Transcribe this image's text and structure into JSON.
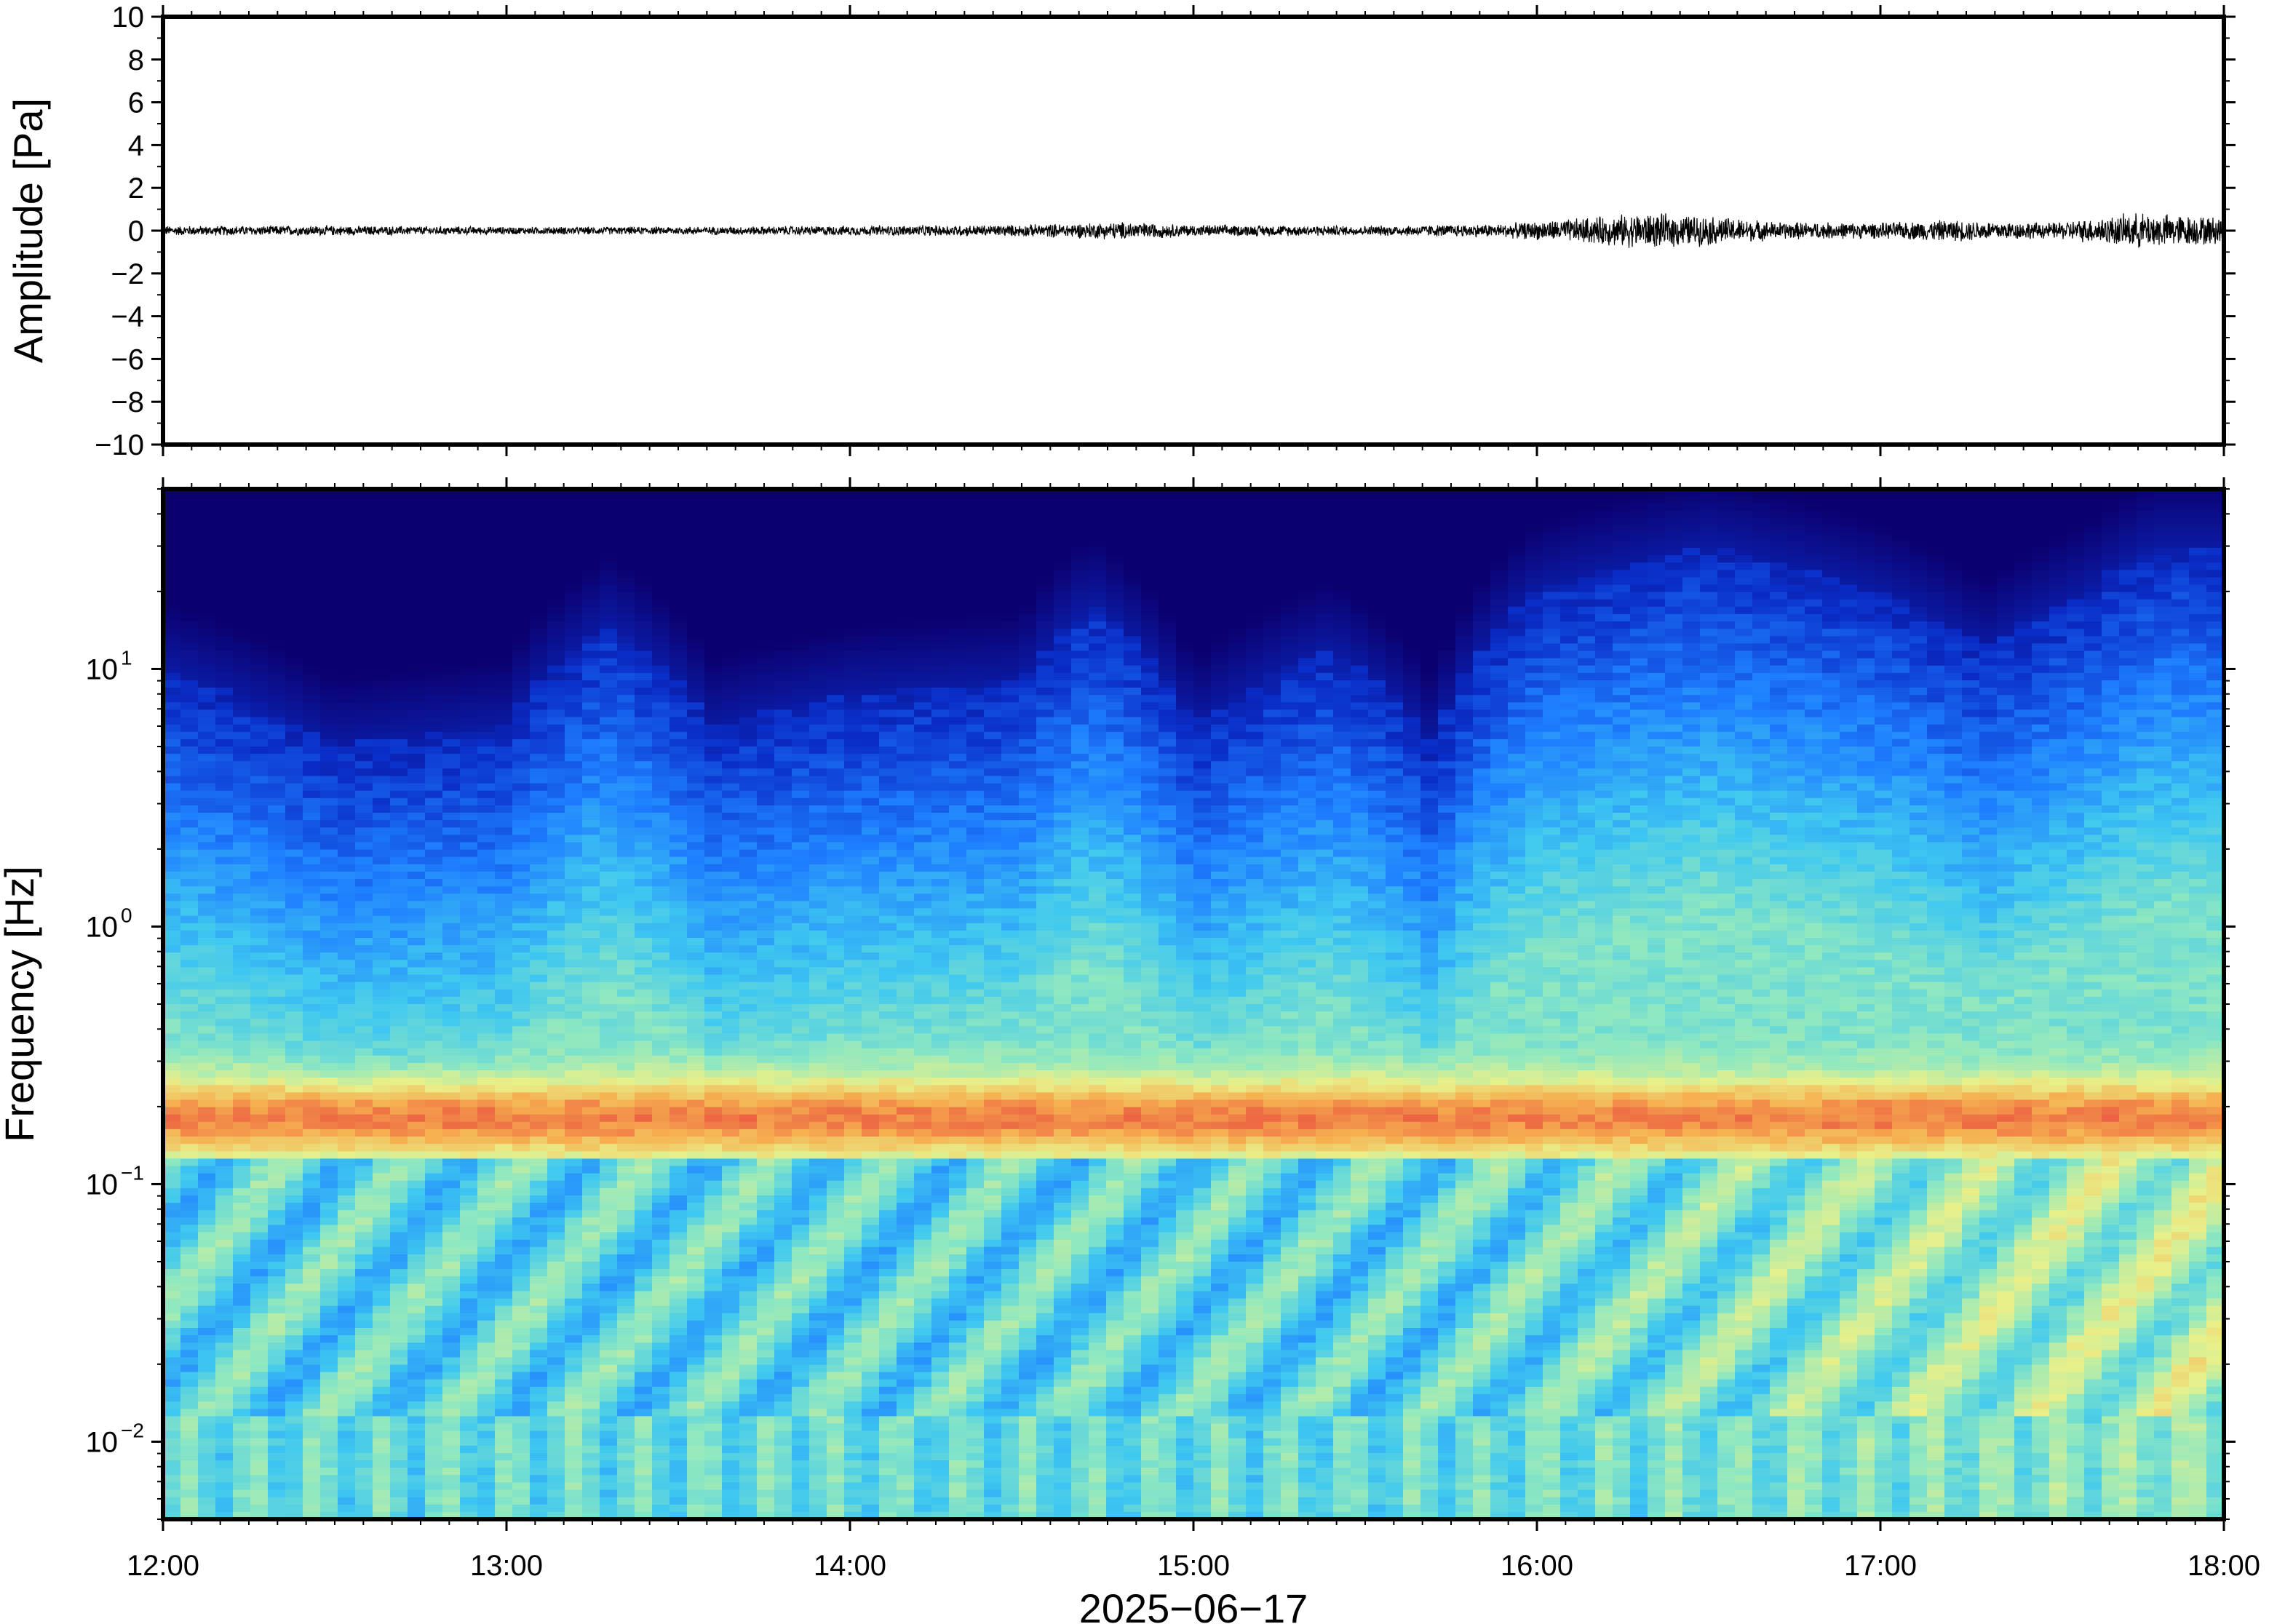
{
  "chart_data": [
    {
      "type": "line",
      "panel": "waveform",
      "ylabel": "Amplitude [Pa]",
      "ylim": [
        -10,
        10
      ],
      "yticks": [
        10,
        8,
        6,
        4,
        2,
        0,
        -2,
        -4,
        -6,
        -8,
        -10
      ],
      "ytick_labels": [
        "10",
        "8",
        "6",
        "4",
        "2",
        "0",
        "−2",
        "−4",
        "−6",
        "−8",
        "−10"
      ],
      "x_range_hours": [
        12,
        18
      ],
      "line_color": "#000000",
      "series": [
        {
          "x_hours": [
            12.0,
            12.5,
            13.0,
            13.5,
            14.0,
            14.5,
            14.8,
            15.0,
            15.5,
            15.9,
            16.1,
            16.3,
            16.5,
            16.7,
            17.0,
            17.2,
            17.5,
            17.75,
            18.0
          ],
          "envelope": [
            0.25,
            0.25,
            0.2,
            0.2,
            0.25,
            0.3,
            0.45,
            0.3,
            0.25,
            0.35,
            0.6,
            0.9,
            0.75,
            0.45,
            0.4,
            0.55,
            0.4,
            0.9,
            0.7
          ]
        }
      ]
    },
    {
      "type": "heatmap",
      "panel": "spectrogram",
      "ylabel": "Frequency [Hz]",
      "y_scale": "log",
      "ylim": [
        0.005,
        50
      ],
      "yticks": [
        0.01,
        0.1,
        1,
        10
      ],
      "ytick_labels": [
        {
          "base": "10",
          "exp": "−2"
        },
        {
          "base": "10",
          "exp": "−1"
        },
        {
          "base": "10",
          "exp": "0"
        },
        {
          "base": "10",
          "exp": "1"
        }
      ],
      "colormap": "jet",
      "colors": [
        "#0b006f",
        "#0a2ec8",
        "#1e7fff",
        "#3fc8f0",
        "#8fe8c0",
        "#e8f08a",
        "#f6b050",
        "#e8433c"
      ],
      "bands": {
        "microbarom_peak_hz": 0.18,
        "upper_cutoff_hz_by_hour": [
          [
            12.0,
            10
          ],
          [
            12.5,
            5
          ],
          [
            13.0,
            6
          ],
          [
            13.3,
            15
          ],
          [
            13.6,
            6
          ],
          [
            14.0,
            8
          ],
          [
            14.5,
            9
          ],
          [
            14.7,
            18
          ],
          [
            15.0,
            6
          ],
          [
            15.4,
            12
          ],
          [
            15.7,
            5
          ],
          [
            16.0,
            20
          ],
          [
            16.5,
            30
          ],
          [
            17.0,
            20
          ],
          [
            17.3,
            12
          ],
          [
            17.6,
            20
          ],
          [
            17.8,
            30
          ],
          [
            18.0,
            30
          ]
        ]
      }
    }
  ],
  "xaxis": {
    "ticks": [
      "12:00",
      "13:00",
      "14:00",
      "15:00",
      "16:00",
      "17:00",
      "18:00"
    ],
    "tick_hours": [
      12,
      13,
      14,
      15,
      16,
      17,
      18
    ],
    "xlabel": "2025−06−17"
  }
}
